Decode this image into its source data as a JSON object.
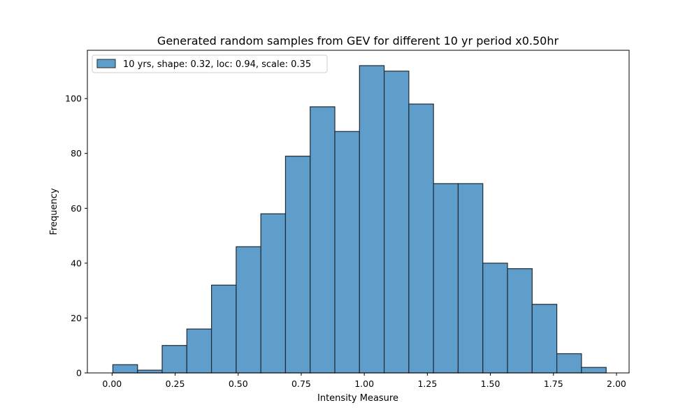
{
  "chart_data": {
    "type": "bar",
    "title": "Generated random samples from GEV for different 10 yr period x0.50hr",
    "xlabel": "Intensity Measure",
    "ylabel": "Frequency",
    "xlim": [
      -0.098,
      2.05
    ],
    "ylim": [
      0,
      117.6
    ],
    "xticks": [
      0.0,
      0.25,
      0.5,
      0.75,
      1.0,
      1.25,
      1.5,
      1.75,
      2.0
    ],
    "xtick_labels": [
      "0.00",
      "0.25",
      "0.50",
      "0.75",
      "1.00",
      "1.25",
      "1.50",
      "1.75",
      "2.00"
    ],
    "yticks": [
      0,
      20,
      40,
      60,
      80,
      100
    ],
    "ytick_labels": [
      "0",
      "20",
      "40",
      "60",
      "80",
      "100"
    ],
    "bin_edges": [
      0.003,
      0.1008,
      0.1986,
      0.2964,
      0.3942,
      0.492,
      0.5898,
      0.6876,
      0.7854,
      0.8832,
      0.981,
      1.0788,
      1.1766,
      1.2744,
      1.3722,
      1.47,
      1.5678,
      1.6656,
      1.7634,
      1.8612,
      1.959
    ],
    "counts": [
      3,
      1,
      10,
      16,
      32,
      46,
      58,
      79,
      97,
      88,
      112,
      110,
      98,
      69,
      69,
      40,
      38,
      25,
      7,
      2
    ],
    "series": [
      {
        "name": "10 yrs, shape: 0.32, loc: 0.94, scale: 0.35",
        "color": "#5f9dcb"
      }
    ],
    "bar_color": "#5f9dcb",
    "edge_color": "#1f2a33",
    "legend_position": "top-left",
    "grid": false
  }
}
